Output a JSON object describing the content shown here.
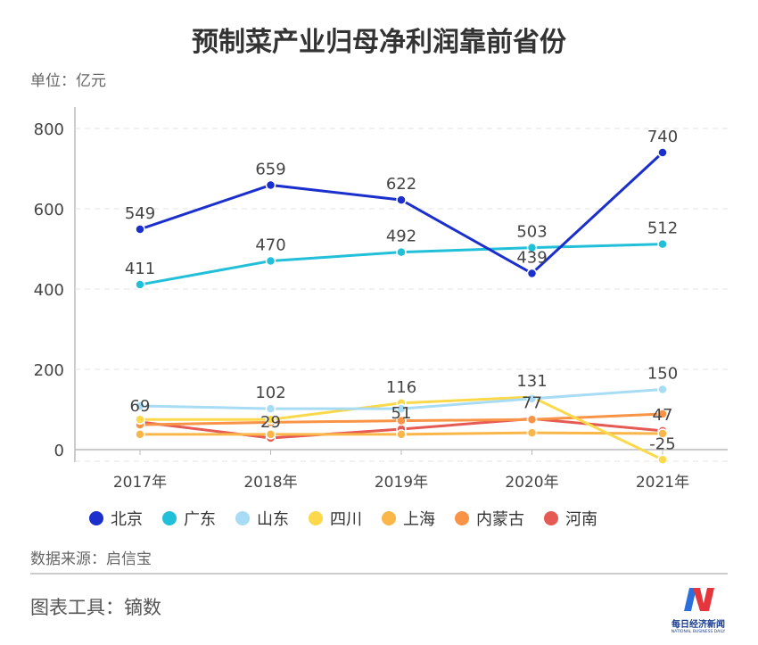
{
  "chart_data": {
    "type": "line",
    "title": "预制菜产业归母净利润靠前省份",
    "unit_label": "单位：亿元",
    "categories": [
      "2017年",
      "2018年",
      "2019年",
      "2020年",
      "2021年"
    ],
    "ylim": [
      -30,
      800
    ],
    "yticks": [
      0,
      200,
      400,
      600,
      800
    ],
    "grid": true,
    "legend_position": "bottom",
    "series": [
      {
        "name": "北京",
        "color": "#1a2fcc",
        "values": [
          549,
          659,
          622,
          439,
          740
        ],
        "labels": [
          "549",
          "659",
          "622",
          "439",
          "740"
        ]
      },
      {
        "name": "广东",
        "color": "#22bfd8",
        "values": [
          411,
          470,
          492,
          503,
          512
        ],
        "labels": [
          "411",
          "470",
          "492",
          "503",
          "512"
        ]
      },
      {
        "name": "山东",
        "color": "#a8dcf5",
        "values": [
          109,
          102,
          102,
          127,
          150
        ],
        "labels": [
          null,
          "102",
          null,
          null,
          "150"
        ]
      },
      {
        "name": "四川",
        "color": "#fbd94a",
        "values": [
          75,
          75,
          116,
          131,
          -25
        ],
        "labels": [
          null,
          null,
          "116",
          "131",
          "-25"
        ]
      },
      {
        "name": "上海",
        "color": "#fbb64a",
        "values": [
          38,
          38,
          38,
          42,
          40
        ],
        "labels": [
          null,
          null,
          null,
          null,
          null
        ]
      },
      {
        "name": "内蒙古",
        "color": "#f99446",
        "values": [
          62,
          68,
          72,
          75,
          89
        ],
        "labels": [
          null,
          null,
          null,
          null,
          null
        ]
      },
      {
        "name": "河南",
        "color": "#e55a52",
        "values": [
          69,
          29,
          51,
          77,
          47
        ],
        "labels": [
          "69",
          "29",
          "51",
          "77",
          "47"
        ]
      }
    ]
  },
  "footer": {
    "source": "数据来源：启信宝",
    "tool": "图表工具：镝数",
    "logo_text": "每日经济新闻",
    "logo_sub": "NATIONAL BUSINESS DAILY"
  }
}
